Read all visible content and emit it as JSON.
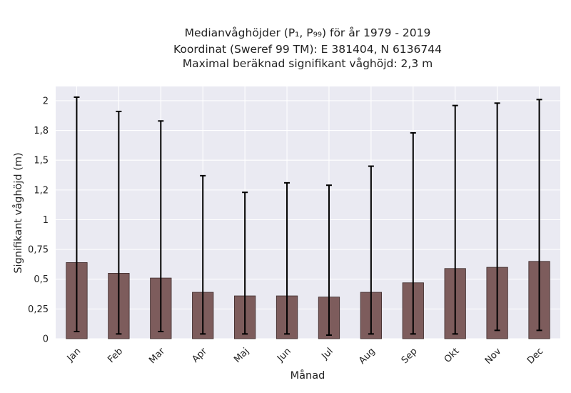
{
  "chart_data": {
    "type": "bar",
    "title_lines": [
      "Medianvåghöjder (P₁, P₉₉) för år 1979 - 2019",
      "Koordinat (Sweref 99 TM): E 381404, N 6136744",
      "Maximal beräknad signifikant våghöjd: 2,3 m"
    ],
    "xlabel": "Månad",
    "ylabel": "Signifikant våghöjd (m)",
    "categories": [
      "Jan",
      "Feb",
      "Mar",
      "Apr",
      "Maj",
      "Jun",
      "Jul",
      "Aug",
      "Sep",
      "Okt",
      "Nov",
      "Dec"
    ],
    "values": [
      0.64,
      0.55,
      0.51,
      0.39,
      0.36,
      0.36,
      0.35,
      0.39,
      0.47,
      0.59,
      0.6,
      0.65
    ],
    "lower": [
      0.06,
      0.04,
      0.06,
      0.04,
      0.04,
      0.04,
      0.03,
      0.04,
      0.04,
      0.04,
      0.07,
      0.07
    ],
    "upper": [
      2.03,
      1.91,
      1.83,
      1.37,
      1.23,
      1.31,
      1.29,
      1.45,
      1.73,
      1.96,
      1.98,
      2.01
    ],
    "yticks": [
      0,
      0.25,
      0.5,
      0.75,
      1,
      1.25,
      1.5,
      1.75,
      2
    ],
    "ytick_labels": [
      "0",
      "0,25",
      "0,5",
      "0,75",
      "1",
      "1,2",
      "1,5",
      "1,8",
      "2"
    ],
    "ylim": [
      0,
      2.12
    ],
    "grid": true,
    "colors": {
      "plot_background": "#eaeaf2",
      "bar": "#7d5c5c",
      "bar_edge": "#3d2b2b",
      "errorbar": "#000000"
    }
  }
}
